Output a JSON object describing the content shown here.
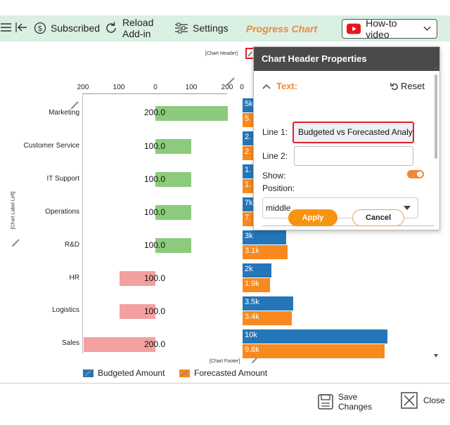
{
  "toolbar": {
    "subscribed": "Subscribed",
    "reload_line1": "Reload",
    "reload_line2": "Add-in",
    "settings": "Settings",
    "title": "Progress Chart",
    "howto": "How-to video"
  },
  "chart": {
    "header_label": "[Chart Header]",
    "footer_label": "[Chart Footer]",
    "left_label": "[Chart Label Left]",
    "left_ticks": [
      "200",
      "100",
      "0",
      "100",
      "200"
    ],
    "right_tick": "0",
    "categories": [
      "Marketing",
      "Customer Service",
      "IT Support",
      "Operations",
      "R&D",
      "HR",
      "Logistics",
      "Sales"
    ],
    "left_values": [
      "200.0",
      "100.0",
      "100.0",
      "100.0",
      "100.0",
      "100.0",
      "100.0",
      "200.0"
    ],
    "budget_labels": [
      "5k",
      "2.",
      "1.",
      "7k",
      "3k",
      "2k",
      "3.5k",
      "10k"
    ],
    "forecast_labels": [
      "5.",
      "2.",
      "1.",
      "7.",
      "3.1k",
      "1.9k",
      "3.4k",
      "9.8k"
    ]
  },
  "chart_data": {
    "type": "bar",
    "categories": [
      "Marketing",
      "Customer Service",
      "IT Support",
      "Operations",
      "R&D",
      "HR",
      "Logistics",
      "Sales"
    ],
    "left_panel": {
      "values": [
        200,
        100,
        100,
        100,
        100,
        -100,
        -100,
        -200
      ],
      "colors": [
        "#8bcb7b",
        "#8bcb7b",
        "#8bcb7b",
        "#8bcb7b",
        "#8bcb7b",
        "#f4a0a0",
        "#f4a0a0",
        "#f4a0a0"
      ],
      "ticks": [
        -200,
        -100,
        0,
        100,
        200
      ]
    },
    "series": [
      {
        "name": "Budgeted Amount",
        "values": [
          null,
          null,
          null,
          null,
          3000,
          2000,
          3500,
          10000
        ],
        "color": "#2576b8"
      },
      {
        "name": "Forecasted Amount",
        "values": [
          null,
          null,
          null,
          null,
          3100,
          1900,
          3400,
          9800
        ],
        "color": "#f7891e"
      }
    ]
  },
  "legend": {
    "budgeted": "Budgeted Amount",
    "forecasted": "Forecasted Amount",
    "budget_color": "#2576b8",
    "forecast_color": "#f7891e"
  },
  "panel": {
    "title": "Chart Header Properties",
    "section": "Text:",
    "reset": "Reset",
    "line1_label": "Line 1:",
    "line1_value": "Budgeted vs Forecasted Analy",
    "line2_label": "Line 2:",
    "line2_value": "",
    "show_label": "Show:",
    "show_value": true,
    "position_label": "Position:",
    "position_value": "middle",
    "apply": "Apply",
    "cancel": "Cancel"
  },
  "footer": {
    "save_line1": "Save",
    "save_line2": "Changes",
    "close": "Close"
  }
}
